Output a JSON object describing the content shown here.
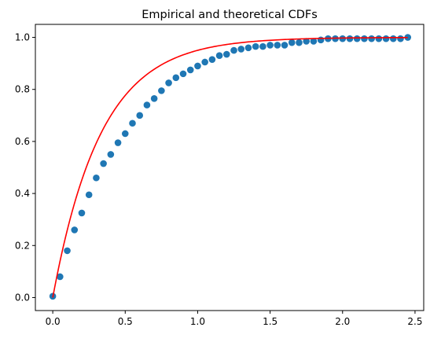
{
  "chart_data": {
    "type": "scatter",
    "title": "Empirical and theoretical CDFs",
    "xlabel": "",
    "ylabel": "",
    "xlim": [
      -0.12,
      2.56
    ],
    "ylim": [
      -0.05,
      1.05
    ],
    "x_ticks": [
      0.0,
      0.5,
      1.0,
      1.5,
      2.0,
      2.5
    ],
    "x_tick_labels": [
      "0.0",
      "0.5",
      "1.0",
      "1.5",
      "2.0",
      "2.5"
    ],
    "y_ticks": [
      0.0,
      0.2,
      0.4,
      0.6,
      0.8,
      1.0
    ],
    "y_tick_labels": [
      "0.0",
      "0.2",
      "0.4",
      "0.6",
      "0.8",
      "1.0"
    ],
    "grid": false,
    "legend": "none",
    "series": [
      {
        "kind": "scatter",
        "color": "#1f77b4",
        "x": [
          0.0,
          0.05,
          0.1,
          0.15,
          0.2,
          0.25,
          0.3,
          0.35,
          0.4,
          0.45,
          0.5,
          0.55,
          0.6,
          0.65,
          0.7,
          0.75,
          0.8,
          0.85,
          0.9,
          0.95,
          1.0,
          1.05,
          1.1,
          1.15,
          1.2,
          1.25,
          1.3,
          1.35,
          1.4,
          1.45,
          1.5,
          1.55,
          1.6,
          1.65,
          1.7,
          1.75,
          1.8,
          1.85,
          1.9,
          1.95,
          2.0,
          2.05,
          2.1,
          2.15,
          2.2,
          2.25,
          2.3,
          2.35,
          2.4,
          2.45
        ],
        "y": [
          0.005,
          0.08,
          0.18,
          0.26,
          0.325,
          0.395,
          0.46,
          0.515,
          0.55,
          0.595,
          0.63,
          0.67,
          0.7,
          0.74,
          0.765,
          0.795,
          0.825,
          0.845,
          0.86,
          0.875,
          0.89,
          0.905,
          0.915,
          0.93,
          0.935,
          0.95,
          0.955,
          0.96,
          0.965,
          0.965,
          0.97,
          0.97,
          0.97,
          0.98,
          0.98,
          0.985,
          0.985,
          0.99,
          0.995,
          0.995,
          0.995,
          0.995,
          0.995,
          0.995,
          0.995,
          0.995,
          0.995,
          0.995,
          0.995,
          1.0
        ]
      },
      {
        "kind": "line",
        "color": "#ff0000",
        "function": "1 - exp(-3x)",
        "domain": [
          0.0,
          2.45
        ]
      }
    ]
  }
}
